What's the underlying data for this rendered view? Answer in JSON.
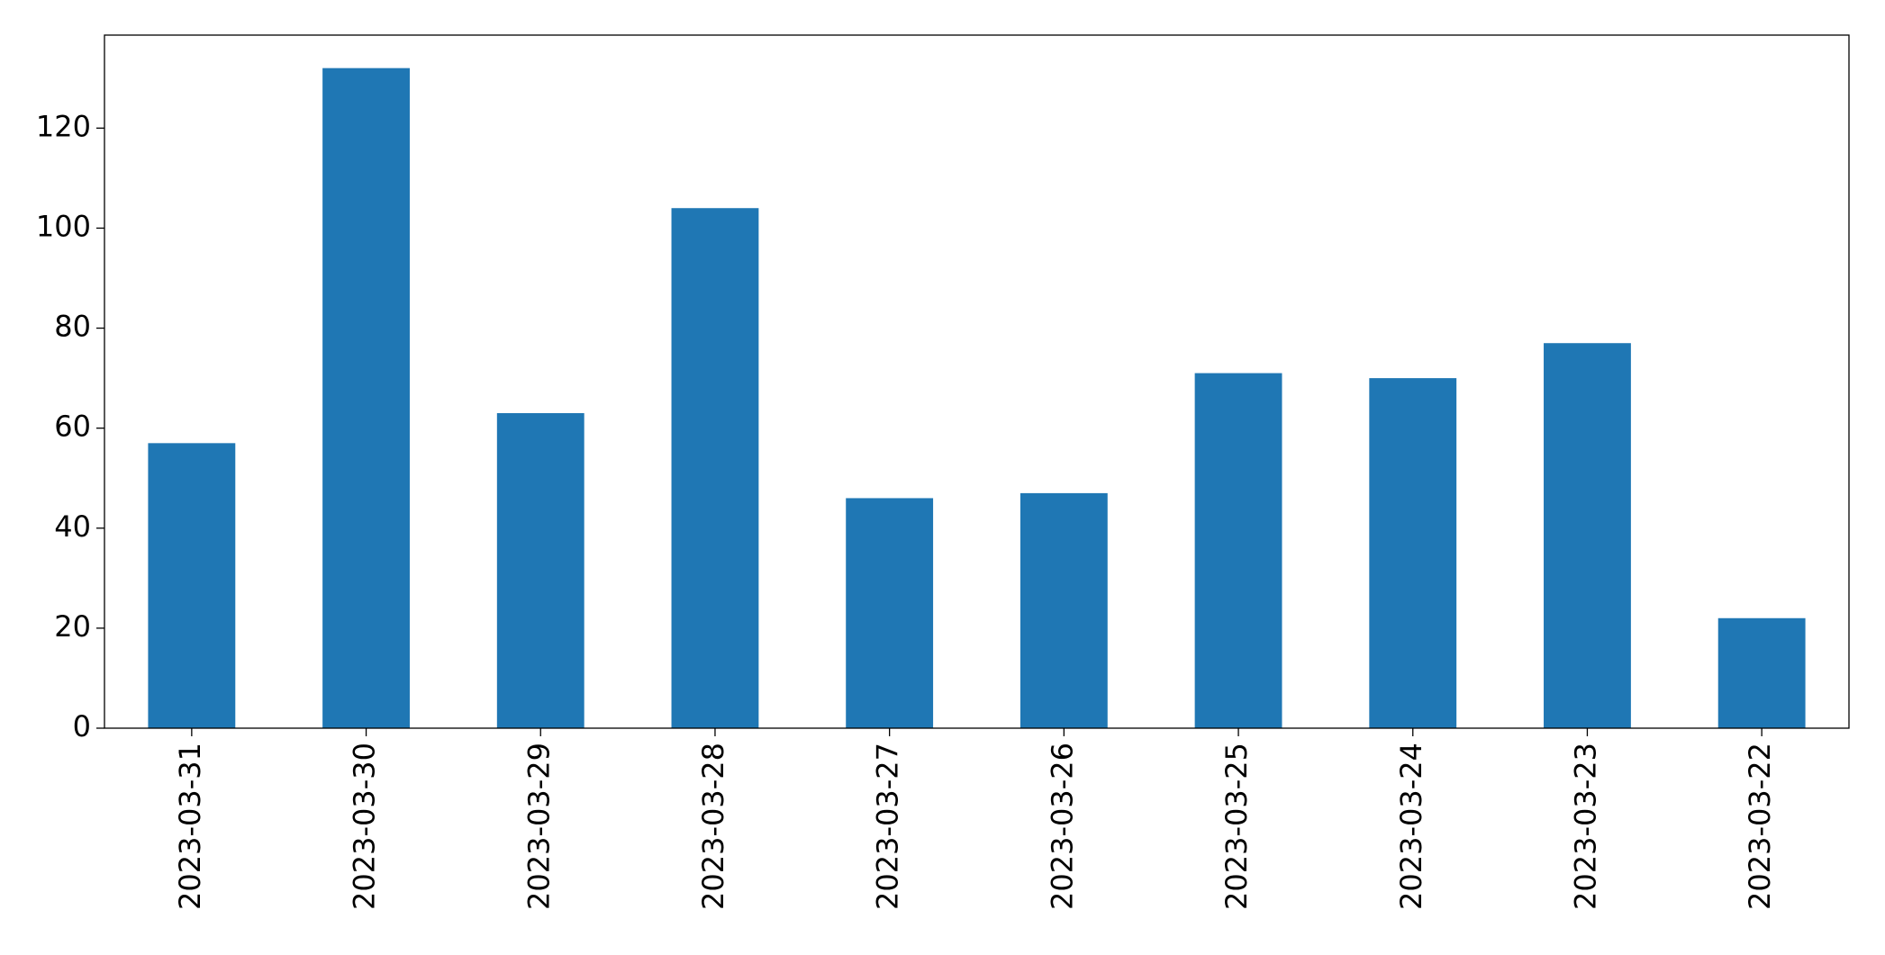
{
  "chart_data": {
    "type": "bar",
    "categories": [
      "2023-03-31",
      "2023-03-30",
      "2023-03-29",
      "2023-03-28",
      "2023-03-27",
      "2023-03-26",
      "2023-03-25",
      "2023-03-24",
      "2023-03-23",
      "2023-03-22"
    ],
    "values": [
      57,
      132,
      63,
      104,
      46,
      47,
      71,
      70,
      77,
      22
    ],
    "color": "#1f77b4",
    "ylim": [
      0,
      138.6
    ],
    "yticks": [
      0,
      20,
      40,
      60,
      80,
      100,
      120
    ],
    "grid": false
  }
}
